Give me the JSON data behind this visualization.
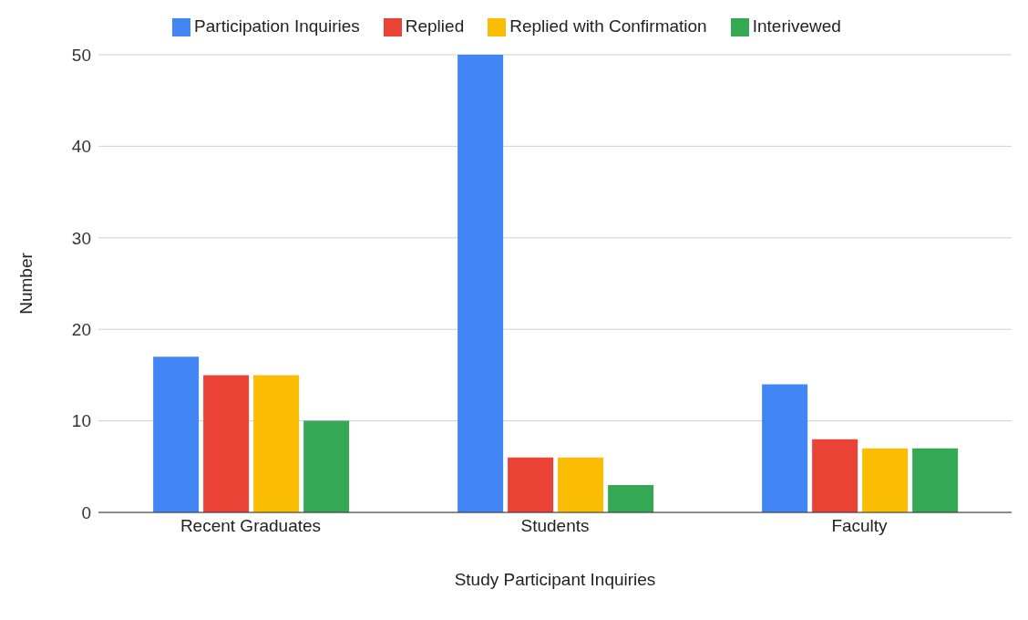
{
  "chart_data": {
    "type": "bar",
    "xlabel": "Study Participant Inquiries",
    "ylabel": "Number",
    "categories": [
      "Recent Graduates",
      "Students",
      "Faculty"
    ],
    "series": [
      {
        "name": "Participation Inquiries",
        "color": "#4285f4",
        "values": [
          17,
          50,
          14
        ]
      },
      {
        "name": "Replied",
        "color": "#ea4335",
        "values": [
          15,
          6,
          8
        ]
      },
      {
        "name": "Replied with Confirmation",
        "color": "#fbbc04",
        "values": [
          15,
          6,
          7
        ]
      },
      {
        "name": "Interivewed",
        "color": "#34a853",
        "values": [
          10,
          3,
          7
        ]
      }
    ],
    "ylim": [
      0,
      50
    ],
    "yticks": [
      0,
      10,
      20,
      30,
      40,
      50
    ],
    "grid": "y",
    "legend": "top"
  }
}
